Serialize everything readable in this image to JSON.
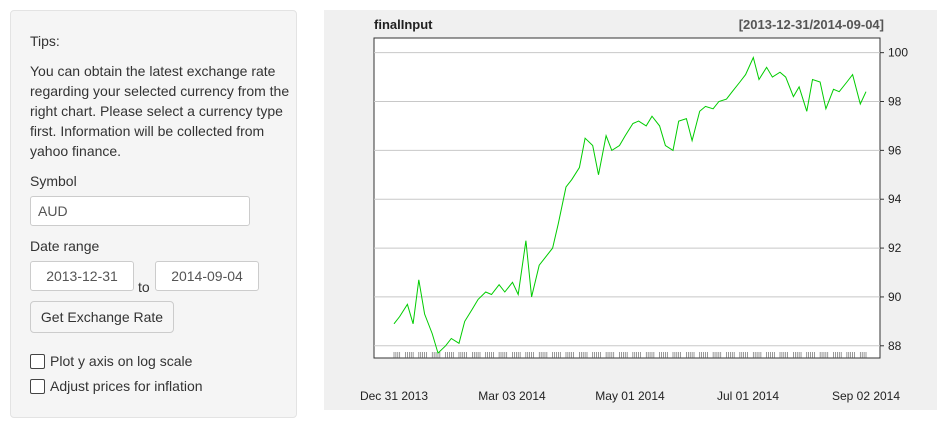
{
  "sidebar": {
    "tips_label": "Tips:",
    "tips_text": "You can obtain the latest exchange rate regarding your selected currency from the right chart. Please select a currency type first. Information will be collected from yahoo finance.",
    "symbol_label": "Symbol",
    "symbol_value": "AUD",
    "date_range_label": "Date range",
    "date_start": "2013-12-31",
    "date_to": "to",
    "date_end": "2014-09-04",
    "button_label": "Get Exchange Rate",
    "log_scale_label": "Plot y axis on log scale",
    "log_scale_checked": false,
    "inflation_label": "Adjust prices for inflation",
    "inflation_checked": false
  },
  "chart": {
    "title": "finalInput",
    "range_label": "[2013-12-31/2014-09-04]"
  },
  "chart_data": {
    "type": "line",
    "title": "finalInput",
    "subtitle": "[2013-12-31/2014-09-04]",
    "x_tick_labels": [
      "Dec 31 2013",
      "Mar 03 2014",
      "May 01 2014",
      "Jul 01 2014",
      "Sep 02 2014"
    ],
    "y_ticks": [
      88,
      90,
      92,
      94,
      96,
      98,
      100
    ],
    "ylim": [
      87.5,
      100.6
    ],
    "grid": "horizontal",
    "y_axis_position": "right",
    "series_color": "#00cc00",
    "series": [
      {
        "x": [
          "2013-12-31",
          "2014-01-03",
          "2014-01-07",
          "2014-01-10",
          "2014-01-13",
          "2014-01-16",
          "2014-01-20",
          "2014-01-23",
          "2014-01-27",
          "2014-01-30",
          "2014-02-03",
          "2014-02-06",
          "2014-02-10",
          "2014-02-13",
          "2014-02-17",
          "2014-02-20",
          "2014-02-24",
          "2014-02-27",
          "2014-03-03",
          "2014-03-06",
          "2014-03-10",
          "2014-03-13",
          "2014-03-17",
          "2014-03-20",
          "2014-03-24",
          "2014-03-27",
          "2014-03-31",
          "2014-04-03",
          "2014-04-07",
          "2014-04-10",
          "2014-04-14",
          "2014-04-17",
          "2014-04-21",
          "2014-04-24",
          "2014-04-28",
          "2014-05-01",
          "2014-05-05",
          "2014-05-08",
          "2014-05-12",
          "2014-05-15",
          "2014-05-19",
          "2014-05-22",
          "2014-05-26",
          "2014-05-29",
          "2014-06-02",
          "2014-06-05",
          "2014-06-09",
          "2014-06-12",
          "2014-06-16",
          "2014-06-19",
          "2014-06-23",
          "2014-06-26",
          "2014-06-30",
          "2014-07-03",
          "2014-07-07",
          "2014-07-10",
          "2014-07-14",
          "2014-07-17",
          "2014-07-21",
          "2014-07-24",
          "2014-07-28",
          "2014-07-31",
          "2014-08-04",
          "2014-08-07",
          "2014-08-11",
          "2014-08-14",
          "2014-08-18",
          "2014-08-21",
          "2014-08-25",
          "2014-08-28",
          "2014-09-01",
          "2014-09-04"
        ],
        "y": [
          88.9,
          89.2,
          89.7,
          88.9,
          90.7,
          89.3,
          88.5,
          87.7,
          88.0,
          88.3,
          88.1,
          89.0,
          89.5,
          89.9,
          90.2,
          90.1,
          90.5,
          90.2,
          90.6,
          90.1,
          92.3,
          90.0,
          91.3,
          91.6,
          92.0,
          93.0,
          94.5,
          94.8,
          95.3,
          96.5,
          96.2,
          95.0,
          96.6,
          96.0,
          96.2,
          96.6,
          97.1,
          97.2,
          97.0,
          97.4,
          97.0,
          96.2,
          96.0,
          97.2,
          97.3,
          96.4,
          97.6,
          97.8,
          97.7,
          98.0,
          98.1,
          98.4,
          98.8,
          99.1,
          99.8,
          98.9,
          99.4,
          99.0,
          99.2,
          99.0,
          98.2,
          98.6,
          97.6,
          98.9,
          98.8,
          97.7,
          98.5,
          98.4,
          98.8,
          99.1,
          97.9,
          98.4
        ]
      }
    ]
  }
}
